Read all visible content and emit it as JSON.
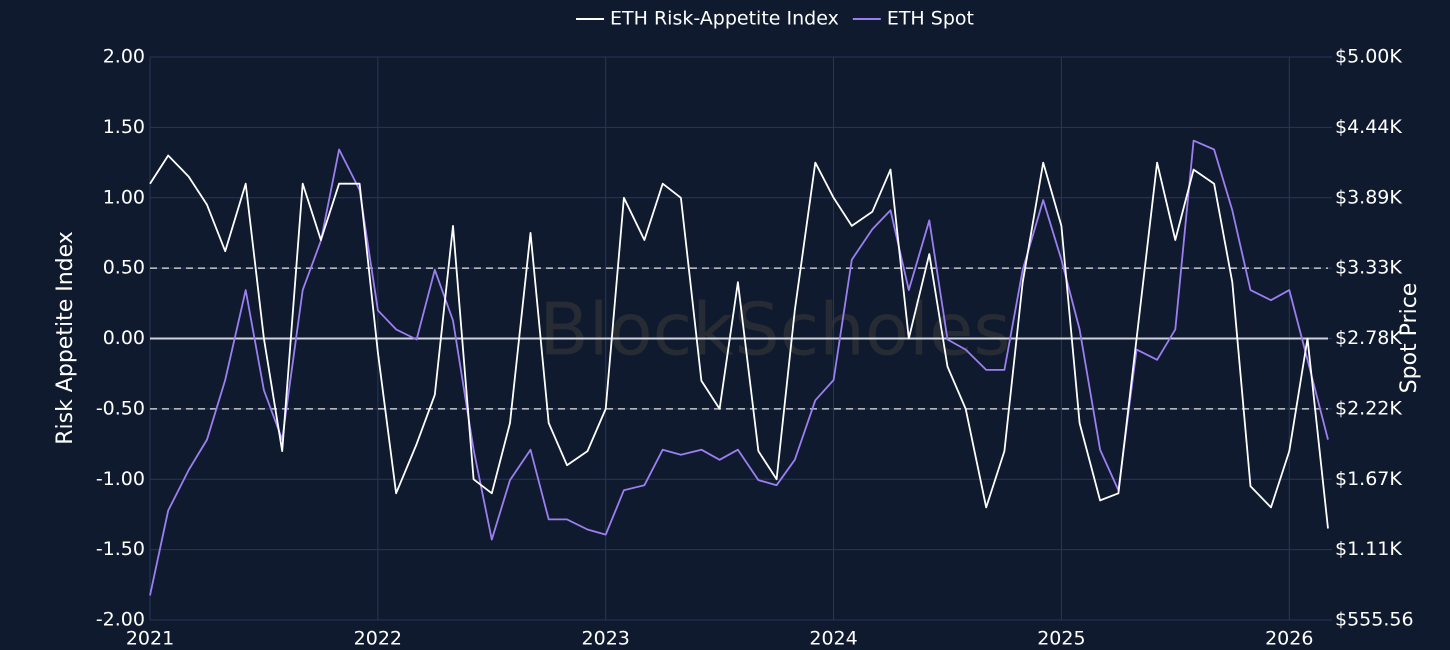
{
  "chart_data": {
    "type": "line",
    "watermark": "BlockScholes",
    "y_label": "Risk Appetite Index",
    "y2_label": "Spot Price",
    "xlim": [
      2021,
      2026.17
    ],
    "xticks": [
      2021,
      2022,
      2023,
      2024,
      2025,
      2026
    ],
    "ylim": [
      -2,
      2
    ],
    "yticks": [
      {
        "value": -2,
        "label": "-2.00"
      },
      {
        "value": -1.5,
        "label": "-1.50"
      },
      {
        "value": -1,
        "label": "-1.00"
      },
      {
        "value": -0.5,
        "label": "-0.50"
      },
      {
        "value": 0,
        "label": "0.00"
      },
      {
        "value": 0.5,
        "label": "0.50"
      },
      {
        "value": 1,
        "label": "1.00"
      },
      {
        "value": 1.5,
        "label": "1.50"
      },
      {
        "value": 2,
        "label": "2.00"
      }
    ],
    "y2lim": [
      555.56,
      5000
    ],
    "y2ticks": [
      {
        "value": 555.56,
        "label": "$555.56"
      },
      {
        "value": 1111.11,
        "label": "$1.11K"
      },
      {
        "value": 1666.67,
        "label": "$1.67K"
      },
      {
        "value": 2222.22,
        "label": "$2.22K"
      },
      {
        "value": 2777.78,
        "label": "$2.78K"
      },
      {
        "value": 3333.33,
        "label": "$3.33K"
      },
      {
        "value": 3888.89,
        "label": "$3.89K"
      },
      {
        "value": 4444.44,
        "label": "$4.44K"
      },
      {
        "value": 5000,
        "label": "$5.00K"
      }
    ],
    "grid": true,
    "reference_lines": [
      {
        "value": 0.5,
        "style": "dashed"
      },
      {
        "value": 0,
        "style": "solid"
      },
      {
        "value": -0.5,
        "style": "dashed"
      }
    ],
    "legend": "top",
    "x": [
      2021,
      2021.08,
      2021.17,
      2021.25,
      2021.33,
      2021.42,
      2021.5,
      2021.58,
      2021.67,
      2021.75,
      2021.83,
      2021.92,
      2022,
      2022.08,
      2022.17,
      2022.25,
      2022.33,
      2022.42,
      2022.5,
      2022.58,
      2022.67,
      2022.75,
      2022.83,
      2022.92,
      2023,
      2023.08,
      2023.17,
      2023.25,
      2023.33,
      2023.42,
      2023.5,
      2023.58,
      2023.67,
      2023.75,
      2023.83,
      2023.92,
      2024,
      2024.08,
      2024.17,
      2024.25,
      2024.33,
      2024.42,
      2024.5,
      2024.58,
      2024.67,
      2024.75,
      2024.83,
      2024.92,
      2025,
      2025.08,
      2025.17,
      2025.25,
      2025.33,
      2025.42,
      2025.5,
      2025.58,
      2025.67,
      2025.75,
      2025.83,
      2025.92,
      2026,
      2026.08,
      2026.17
    ],
    "series": [
      {
        "name": "ETH Risk-Appetite Index",
        "color": "#ffffff",
        "axis": "y",
        "values": [
          1.1,
          1.3,
          1.15,
          0.95,
          0.62,
          1.1,
          0.0,
          -0.8,
          1.1,
          0.7,
          1.1,
          1.1,
          -0.1,
          -1.1,
          -0.75,
          -0.4,
          0.8,
          -1.0,
          -1.1,
          -0.6,
          0.75,
          -0.6,
          -0.9,
          -0.8,
          -0.5,
          1.0,
          0.7,
          1.1,
          1.0,
          -0.3,
          -0.5,
          0.4,
          -0.8,
          -1.0,
          0.2,
          1.25,
          1.0,
          0.8,
          0.9,
          1.2,
          0.0,
          0.6,
          -0.2,
          -0.5,
          -1.2,
          -0.8,
          0.4,
          1.25,
          0.8,
          -0.6,
          -1.15,
          -1.1,
          0.0,
          1.25,
          0.7,
          1.2,
          1.1,
          0.4,
          -1.05,
          -1.2,
          -0.8,
          0.0,
          -1.35
        ]
      },
      {
        "name": "ETH Spot",
        "color": "#9b7ff0",
        "axis": "y2",
        "values": [
          750,
          1420,
          1740,
          1980,
          2450,
          3160,
          2370,
          1980,
          3160,
          3550,
          4270,
          3950,
          3000,
          2850,
          2770,
          3320,
          2920,
          1900,
          1190,
          1660,
          1900,
          1350,
          1350,
          1270,
          1230,
          1580,
          1620,
          1900,
          1860,
          1900,
          1820,
          1900,
          1660,
          1620,
          1820,
          2290,
          2450,
          3400,
          3640,
          3790,
          3160,
          3710,
          2770,
          2690,
          2530,
          2530,
          3320,
          3870,
          3400,
          2850,
          1900,
          1580,
          2690,
          2610,
          2850,
          4340,
          4270,
          3790,
          3160,
          3080,
          3160,
          2610,
          1980
        ]
      }
    ]
  }
}
